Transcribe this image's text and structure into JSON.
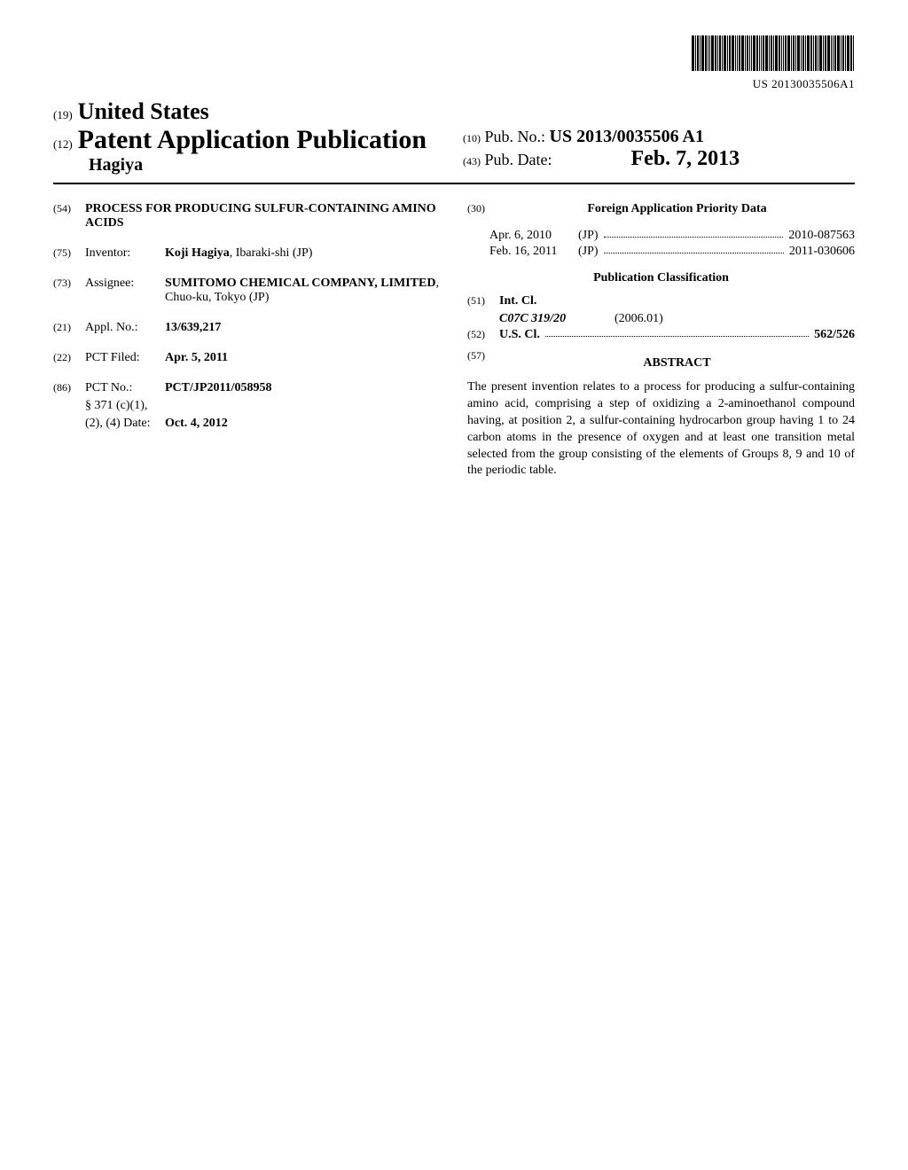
{
  "barcode": {
    "pub_text": "US 20130035506A1"
  },
  "header": {
    "country_code": "(19)",
    "country": "United States",
    "pub_type_code": "(12)",
    "pub_type": "Patent Application Publication",
    "author": "Hagiya",
    "pub_no_code": "(10)",
    "pub_no_label": "Pub. No.:",
    "pub_no_value": "US 2013/0035506 A1",
    "pub_date_code": "(43)",
    "pub_date_label": "Pub. Date:",
    "pub_date_value": "Feb. 7, 2013"
  },
  "left": {
    "title_code": "(54)",
    "title": "PROCESS FOR PRODUCING SULFUR-CONTAINING AMINO ACIDS",
    "inventor_code": "(75)",
    "inventor_label": "Inventor:",
    "inventor_name": "Koji Hagiya",
    "inventor_loc": ", Ibaraki-shi (JP)",
    "assignee_code": "(73)",
    "assignee_label": "Assignee:",
    "assignee_name": "SUMITOMO CHEMICAL COMPANY, LIMITED",
    "assignee_loc": ", Chuo-ku, Tokyo (JP)",
    "applno_code": "(21)",
    "applno_label": "Appl. No.:",
    "applno_value": "13/639,217",
    "pctfiled_code": "(22)",
    "pctfiled_label": "PCT Filed:",
    "pctfiled_value": "Apr. 5, 2011",
    "pctno_code": "(86)",
    "pctno_label": "PCT No.:",
    "pctno_value": "PCT/JP2011/058958",
    "s371_label": "§ 371 (c)(1),",
    "s371_date_label": "(2), (4) Date:",
    "s371_date_value": "Oct. 4, 2012"
  },
  "right": {
    "priority_code": "(30)",
    "priority_heading": "Foreign Application Priority Data",
    "priority_rows": [
      {
        "date": "Apr. 6, 2010",
        "country": "(JP)",
        "number": "2010-087563"
      },
      {
        "date": "Feb. 16, 2011",
        "country": "(JP)",
        "number": "2011-030606"
      }
    ],
    "classification_heading": "Publication Classification",
    "intcl_code": "(51)",
    "intcl_label": "Int. Cl.",
    "intcl_class": "C07C 319/20",
    "intcl_date": "(2006.01)",
    "uscl_code": "(52)",
    "uscl_label": "U.S. Cl.",
    "uscl_value": "562/526",
    "abstract_code": "(57)",
    "abstract_heading": "ABSTRACT",
    "abstract_text": "The present invention relates to a process for producing a sulfur-containing amino acid, comprising a step of oxidizing a 2-aminoethanol compound having, at position 2, a sulfur-containing hydrocarbon group having 1 to 24 carbon atoms in the presence of oxygen and at least one transition metal selected from the group consisting of the elements of Groups 8, 9 and 10 of the periodic table."
  }
}
